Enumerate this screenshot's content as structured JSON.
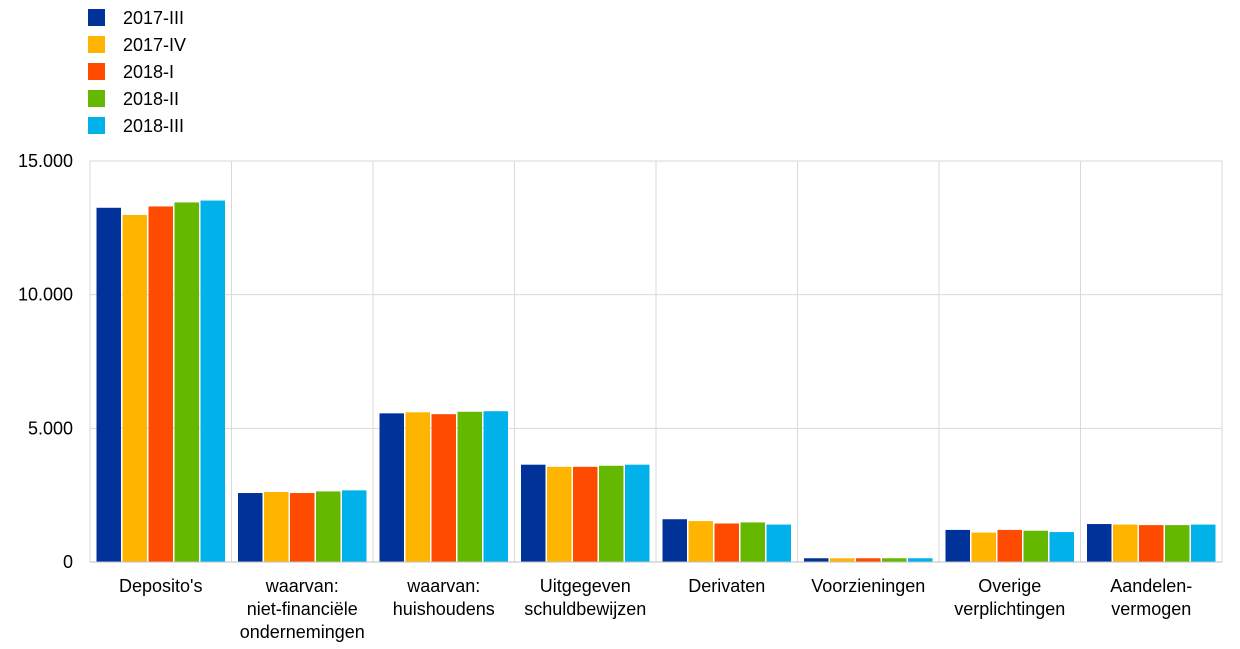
{
  "chart_data": {
    "type": "bar",
    "categories": [
      [
        "Deposito's"
      ],
      [
        "waarvan:",
        "niet-financiële",
        "ondernemingen"
      ],
      [
        "waarvan:",
        "huishoudens"
      ],
      [
        "Uitgegeven",
        "schuldbewijzen"
      ],
      [
        "Derivaten"
      ],
      [
        "Voorzieningen"
      ],
      [
        "Overige",
        "verplichtingen"
      ],
      [
        "Aandelen-",
        "vermogen"
      ]
    ],
    "series": [
      {
        "name": "2017-III",
        "color": "#003299",
        "values": [
          13250,
          2580,
          5560,
          3640,
          1600,
          140,
          1200,
          1420
        ]
      },
      {
        "name": "2017-IV",
        "color": "#FFB400",
        "values": [
          12980,
          2620,
          5600,
          3560,
          1530,
          140,
          1100,
          1400
        ]
      },
      {
        "name": "2018-I",
        "color": "#FF4B00",
        "values": [
          13300,
          2580,
          5530,
          3560,
          1440,
          140,
          1200,
          1380
        ]
      },
      {
        "name": "2018-II",
        "color": "#65B800",
        "values": [
          13450,
          2640,
          5620,
          3600,
          1480,
          140,
          1170,
          1380
        ]
      },
      {
        "name": "2018-III",
        "color": "#00B1EA",
        "values": [
          13520,
          2680,
          5640,
          3640,
          1400,
          140,
          1120,
          1400
        ]
      }
    ],
    "ylim": [
      0,
      15000
    ],
    "yticks": [
      {
        "value": 0,
        "label": "0"
      },
      {
        "value": 5000,
        "label": "5.000"
      },
      {
        "value": 10000,
        "label": "10.000"
      },
      {
        "value": 15000,
        "label": "15.000"
      }
    ],
    "grid": true,
    "legend_position": "top-left"
  }
}
